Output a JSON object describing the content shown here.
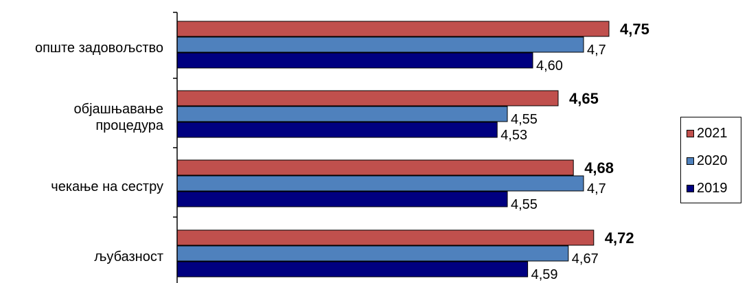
{
  "chart_data": {
    "type": "bar",
    "orientation": "horizontal",
    "title": "",
    "categories": [
      "опште задовољство",
      "објашњавање процедура",
      "чекање на сестру",
      "љубазност"
    ],
    "category_lines": [
      [
        "опште задовољство"
      ],
      [
        "објашњавање",
        "процедура"
      ],
      [
        "чекање на сестру"
      ],
      [
        "љубазност"
      ]
    ],
    "series": [
      {
        "name": "2021",
        "values": [
          4.75,
          4.65,
          4.68,
          4.72
        ],
        "labels": [
          "4,75",
          "4,65",
          "4,68",
          "4,72"
        ],
        "color": "#c0504d",
        "bold_labels": true
      },
      {
        "name": "2020",
        "values": [
          4.7,
          4.55,
          4.7,
          4.67
        ],
        "labels": [
          "4,7",
          "4,55",
          "4,7",
          "4,67"
        ],
        "color": "#4f81bd",
        "bold_labels": false
      },
      {
        "name": "2019",
        "values": [
          4.6,
          4.53,
          4.55,
          4.59
        ],
        "labels": [
          "4,60",
          "4,53",
          "4,55",
          "4,59"
        ],
        "color": "#000080",
        "bold_labels": false
      }
    ],
    "xlim": [
      3.9,
      4.9
    ],
    "grid": false,
    "legend_position": "right"
  }
}
